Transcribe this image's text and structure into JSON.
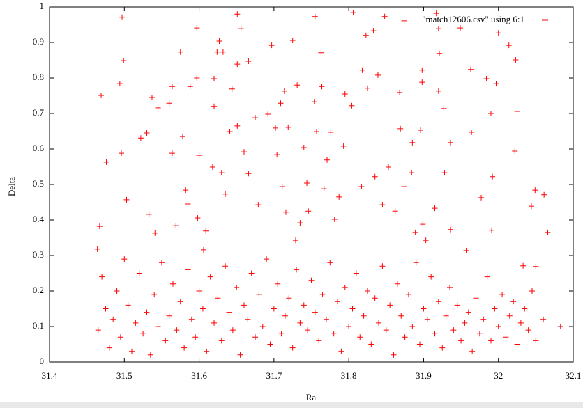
{
  "chart_data": {
    "type": "scatter",
    "xlabel": "Ra",
    "ylabel": "Delta",
    "xlim": [
      31.4,
      32.1
    ],
    "xticks": [
      31.4,
      31.5,
      31.6,
      31.7,
      31.8,
      31.9,
      32,
      32.1
    ],
    "ylim": [
      0,
      1
    ],
    "yticks": [
      0,
      0.1,
      0.2,
      0.3,
      0.4,
      0.5,
      0.6,
      0.7,
      0.8,
      0.9,
      1
    ],
    "legend": "top-right",
    "x": [
      31.497,
      31.499,
      31.494,
      31.469,
      31.496,
      31.476,
      31.503,
      31.467,
      31.464,
      31.537,
      31.545,
      31.522,
      31.53,
      31.533,
      31.541,
      31.56,
      31.564,
      31.564,
      31.569,
      31.575,
      31.578,
      31.582,
      31.585,
      31.588,
      31.597,
      31.597,
      31.6,
      31.598,
      31.606,
      31.609,
      31.618,
      31.62,
      31.62,
      31.624,
      31.627,
      31.632,
      31.63,
      31.635,
      31.641,
      31.644,
      31.651,
      31.651,
      31.651,
      31.656,
      31.66,
      31.666,
      31.666,
      31.675,
      31.679,
      31.692,
      31.697,
      31.702,
      31.704,
      31.709,
      31.711,
      31.714,
      31.716,
      31.719,
      31.725,
      31.729,
      31.731,
      31.735,
      31.74,
      31.744,
      31.746,
      31.755,
      31.754,
      31.757,
      31.763,
      31.764,
      31.767,
      31.771,
      31.776,
      31.781,
      31.787,
      31.793,
      31.795,
      31.804,
      31.806,
      31.817,
      31.818,
      31.823,
      31.825,
      31.833,
      31.835,
      31.839,
      31.845,
      31.848,
      31.853,
      31.862,
      31.868,
      31.869,
      31.874,
      31.874,
      31.884,
      31.885,
      31.889,
      31.896,
      31.898,
      31.898,
      31.899,
      31.903,
      31.915,
      31.917,
      31.92,
      31.921,
      31.92,
      31.927,
      31.928,
      31.936,
      31.936,
      31.949,
      31.957,
      31.963,
      31.964,
      31.977,
      31.984,
      31.99,
      31.991,
      31.992,
      31.997,
      32.0,
      32.014,
      32.022,
      32.023,
      32.025,
      32.044,
      32.049,
      32.061,
      32.066,
      32.033,
      32.05,
      31.465,
      31.47,
      31.475,
      31.48,
      31.485,
      31.49,
      31.495,
      31.5,
      31.505,
      31.51,
      31.515,
      31.52,
      31.525,
      31.53,
      31.535,
      31.54,
      31.545,
      31.55,
      31.555,
      31.56,
      31.565,
      31.57,
      31.575,
      31.58,
      31.585,
      31.59,
      31.595,
      31.6,
      31.605,
      31.61,
      31.615,
      31.62,
      31.625,
      31.63,
      31.635,
      31.64,
      31.645,
      31.65,
      31.655,
      31.66,
      31.665,
      31.67,
      31.675,
      31.68,
      31.685,
      31.69,
      31.695,
      31.7,
      31.705,
      31.71,
      31.715,
      31.72,
      31.725,
      31.73,
      31.735,
      31.74,
      31.745,
      31.75,
      31.755,
      31.76,
      31.765,
      31.77,
      31.775,
      31.78,
      31.785,
      31.79,
      31.795,
      31.8,
      31.805,
      31.81,
      31.815,
      31.82,
      31.825,
      31.83,
      31.835,
      31.84,
      31.845,
      31.85,
      31.855,
      31.86,
      31.865,
      31.87,
      31.875,
      31.88,
      31.885,
      31.89,
      31.895,
      31.9,
      31.905,
      31.91,
      31.915,
      31.92,
      31.925,
      31.93,
      31.935,
      31.94,
      31.945,
      31.95,
      31.955,
      31.96,
      31.965,
      31.97,
      31.975,
      31.98,
      31.985,
      31.99,
      31.995,
      32.0,
      32.005,
      32.01,
      32.015,
      32.02,
      32.025,
      32.03,
      32.035,
      32.04,
      32.045,
      32.05,
      32.06,
      32.083
    ],
    "series": [
      {
        "name": "\"match12606.csv\" using 6:1",
        "color": "#ff0000",
        "values": [
          0.971,
          0.849,
          0.784,
          0.751,
          0.588,
          0.563,
          0.457,
          0.382,
          0.318,
          0.745,
          0.716,
          0.631,
          0.645,
          0.416,
          0.363,
          0.729,
          0.776,
          0.588,
          0.384,
          0.873,
          0.635,
          0.484,
          0.445,
          0.776,
          0.941,
          0.8,
          0.582,
          0.406,
          0.316,
          0.369,
          0.549,
          0.798,
          0.72,
          0.873,
          0.904,
          0.873,
          0.533,
          0.473,
          0.649,
          0.769,
          0.98,
          0.839,
          0.665,
          0.939,
          0.592,
          0.847,
          0.531,
          0.688,
          0.443,
          0.698,
          0.892,
          0.659,
          0.584,
          0.729,
          0.494,
          0.763,
          0.422,
          0.661,
          0.906,
          0.343,
          0.78,
          0.392,
          0.604,
          0.504,
          0.425,
          0.973,
          0.733,
          0.649,
          0.871,
          0.776,
          0.488,
          0.569,
          0.647,
          0.402,
          0.465,
          0.608,
          0.755,
          0.722,
          0.984,
          0.494,
          0.822,
          0.92,
          0.771,
          0.933,
          0.522,
          0.808,
          0.443,
          0.973,
          0.549,
          0.425,
          0.759,
          0.657,
          0.961,
          0.494,
          0.533,
          0.618,
          0.365,
          0.653,
          0.822,
          0.788,
          0.388,
          0.343,
          0.433,
          0.982,
          0.939,
          0.869,
          0.763,
          0.714,
          0.533,
          0.618,
          0.373,
          0.941,
          0.314,
          0.824,
          0.647,
          0.463,
          0.798,
          0.7,
          0.371,
          0.522,
          0.784,
          0.927,
          0.892,
          0.594,
          0.851,
          0.706,
          0.439,
          0.484,
          0.471,
          0.365,
          0.271,
          0.269,
          0.09,
          0.24,
          0.15,
          0.04,
          0.12,
          0.2,
          0.07,
          0.29,
          0.16,
          0.03,
          0.11,
          0.25,
          0.08,
          0.14,
          0.02,
          0.19,
          0.1,
          0.28,
          0.06,
          0.13,
          0.22,
          0.09,
          0.17,
          0.04,
          0.26,
          0.12,
          0.07,
          0.2,
          0.15,
          0.03,
          0.24,
          0.11,
          0.18,
          0.06,
          0.27,
          0.14,
          0.09,
          0.21,
          0.02,
          0.16,
          0.12,
          0.25,
          0.07,
          0.19,
          0.1,
          0.29,
          0.05,
          0.15,
          0.22,
          0.08,
          0.13,
          0.18,
          0.04,
          0.26,
          0.11,
          0.16,
          0.09,
          0.23,
          0.14,
          0.06,
          0.19,
          0.12,
          0.28,
          0.08,
          0.17,
          0.03,
          0.21,
          0.1,
          0.15,
          0.25,
          0.07,
          0.13,
          0.2,
          0.05,
          0.18,
          0.11,
          0.27,
          0.09,
          0.16,
          0.02,
          0.22,
          0.13,
          0.07,
          0.19,
          0.1,
          0.28,
          0.05,
          0.15,
          0.12,
          0.24,
          0.08,
          0.17,
          0.04,
          0.13,
          0.21,
          0.09,
          0.16,
          0.06,
          0.11,
          0.14,
          0.03,
          0.18,
          0.08,
          0.12,
          0.24,
          0.06,
          0.15,
          0.1,
          0.19,
          0.07,
          0.13,
          0.17,
          0.05,
          0.11,
          0.15,
          0.09,
          0.2,
          0.06,
          0.12,
          0.1
        ]
      }
    ]
  }
}
